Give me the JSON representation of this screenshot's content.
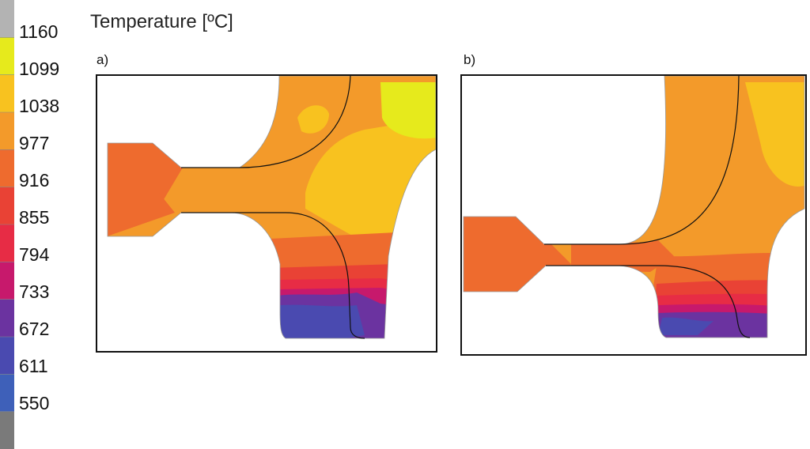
{
  "legend": {
    "title": "Temperature [ºC]",
    "colors": [
      "#b3b3b3",
      "#e6ea1c",
      "#f8c21f",
      "#f39a2a",
      "#ee6b2e",
      "#e94235",
      "#e72c45",
      "#c7196c",
      "#6b33a0",
      "#4a4ab0",
      "#3e60b9",
      "#7a7a7a"
    ],
    "ticks": [
      "1160",
      "1099",
      "1038",
      "977",
      "916",
      "855",
      "794",
      "733",
      "672",
      "611",
      "550"
    ]
  },
  "panels": [
    {
      "label": "a)"
    },
    {
      "label": "b)"
    }
  ]
}
